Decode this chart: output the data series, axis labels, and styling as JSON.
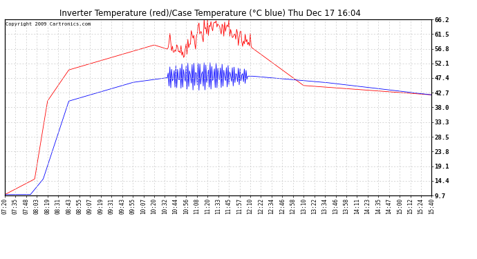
{
  "title": "Inverter Temperature (red)/Case Temperature (°C blue) Thu Dec 17 16:04",
  "copyright": "Copyright 2009 Cartronics.com",
  "background_color": "#ffffff",
  "plot_bg_color": "#ffffff",
  "grid_color": "#c8c8c8",
  "y_ticks": [
    9.7,
    14.4,
    19.1,
    23.8,
    28.5,
    33.3,
    38.0,
    42.7,
    47.4,
    52.1,
    56.8,
    61.5,
    66.2
  ],
  "y_min": 9.7,
  "y_max": 66.2,
  "x_labels": [
    "07:20",
    "07:35",
    "07:48",
    "08:03",
    "08:19",
    "08:31",
    "08:43",
    "08:55",
    "09:07",
    "09:19",
    "09:31",
    "09:43",
    "09:55",
    "10:07",
    "10:20",
    "10:32",
    "10:44",
    "10:56",
    "11:08",
    "11:20",
    "11:33",
    "11:45",
    "11:57",
    "12:10",
    "12:22",
    "12:34",
    "12:46",
    "12:58",
    "13:10",
    "13:22",
    "13:34",
    "13:46",
    "13:58",
    "14:11",
    "14:23",
    "14:35",
    "14:47",
    "15:00",
    "15:12",
    "15:24",
    "15:40"
  ],
  "red_line_color": "#ff0000",
  "blue_line_color": "#0000ff"
}
